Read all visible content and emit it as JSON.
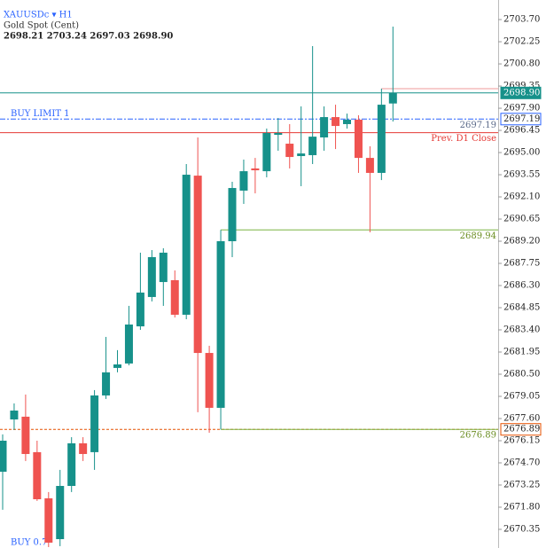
{
  "chart_data": {
    "type": "candlestick",
    "title": "XAUUSDc ▾ H1",
    "subtitle": "Gold Spot (Cent)",
    "ohlc_legend": "2698.21 2703.24 2697.03 2698.90",
    "position_label": "BUY 0.7",
    "up_color": "#16918a",
    "down_color": "#ef5350",
    "open": [
      2674.12,
      2677.54,
      2677.72,
      2675.4,
      2672.38,
      2669.71,
      2673.19,
      2675.98,
      2675.4,
      2679.11,
      2680.91,
      2681.2,
      2683.63,
      2685.55,
      2686.53,
      2686.65,
      2684.39,
      2693.49,
      2681.89,
      2678.3,
      2689.2,
      2692.51,
      2693.96,
      2693.78,
      2696.16,
      2695.58,
      2694.77,
      2694.83,
      2695.99,
      2697.32,
      2696.86,
      2697.15,
      2694.65,
      2693.67,
      2698.21
    ],
    "high": [
      2676.56,
      2678.59,
      2679.17,
      2676.15,
      2672.79,
      2674.24,
      2676.38,
      2676.38,
      2679.46,
      2682.94,
      2682.07,
      2684.97,
      2688.45,
      2688.62,
      2688.74,
      2687.29,
      2694.25,
      2695.99,
      2682.36,
      2689.94,
      2693.09,
      2694.54,
      2694.65,
      2696.57,
      2697.26,
      2696.86,
      2698.02,
      2701.96,
      2698.02,
      2698.13,
      2697.55,
      2697.44,
      2695.41,
      2699.18,
      2703.24
    ],
    "low": [
      2671.63,
      2676.85,
      2674.82,
      2672.21,
      2669.19,
      2669.25,
      2672.79,
      2674.82,
      2674.24,
      2678.88,
      2680.62,
      2681.08,
      2683.4,
      2685.26,
      2684.97,
      2684.21,
      2684.1,
      2678.01,
      2676.67,
      2676.89,
      2688.16,
      2691.64,
      2692.33,
      2693.38,
      2695.12,
      2693.96,
      2692.8,
      2694.25,
      2695.12,
      2695.23,
      2696.57,
      2693.67,
      2689.78,
      2693.2,
      2697.03
    ],
    "close": [
      2676.15,
      2678.12,
      2675.28,
      2672.32,
      2669.48,
      2673.19,
      2675.98,
      2675.28,
      2679.11,
      2680.62,
      2681.14,
      2683.75,
      2685.84,
      2688.16,
      2688.45,
      2684.39,
      2693.55,
      2681.89,
      2678.3,
      2689.2,
      2692.68,
      2693.78,
      2693.84,
      2696.28,
      2696.28,
      2694.71,
      2694.94,
      2696.04,
      2697.32,
      2696.74,
      2697.15,
      2694.65,
      2693.67,
      2698.13,
      2698.9
    ],
    "ylim": [
      2669.13,
      2704.98
    ],
    "yticks": [
      {
        "value": 2703.7,
        "label": "2703.70"
      },
      2702.25,
      {
        "value": 2700.8,
        "label": "2700.80"
      },
      2699.35,
      {
        "value": 2697.9,
        "label": "2697.90"
      },
      2696.45,
      {
        "value": 2695,
        "label": "2695.00"
      },
      2693.55,
      {
        "value": 2692.1,
        "label": "2692.10"
      },
      2690.65,
      {
        "value": 2689.2,
        "label": "2689.20"
      },
      2687.75,
      {
        "value": 2686.3,
        "label": "2686.30"
      },
      2684.85,
      {
        "value": 2683.4,
        "label": "2683.40"
      },
      2681.95,
      {
        "value": 2680.5,
        "label": "2680.50"
      },
      2679.05,
      {
        "value": 2677.6,
        "label": "2677.60"
      },
      2676.15,
      {
        "value": 2674.7,
        "label": "2674.70"
      },
      2673.25,
      {
        "value": 2671.8,
        "label": "2671.80"
      },
      2670.35
    ],
    "levels": [
      {
        "value": 2699.18,
        "color": "#ef9a9a"
      },
      {
        "value": 2698.9,
        "label": "2698.90",
        "color": "#16918a",
        "box": "fill"
      },
      {
        "name": "BUY LIMIT 1",
        "value": 2697.19,
        "color": "#2962ff",
        "dash": "6 2 2 2",
        "tag": true,
        "box": "outline"
      },
      {
        "name": "Prev. D1 Close",
        "value": 2696.3,
        "color": "#e53935"
      },
      {
        "value": 2689.94,
        "color": "#7cb342",
        "tag": true
      },
      {
        "value": 2676.89,
        "color": "#e65100",
        "dash": "3 2",
        "box": "outline"
      },
      {
        "value": 2676.89,
        "color": "#7cb342",
        "tag": true
      }
    ]
  }
}
